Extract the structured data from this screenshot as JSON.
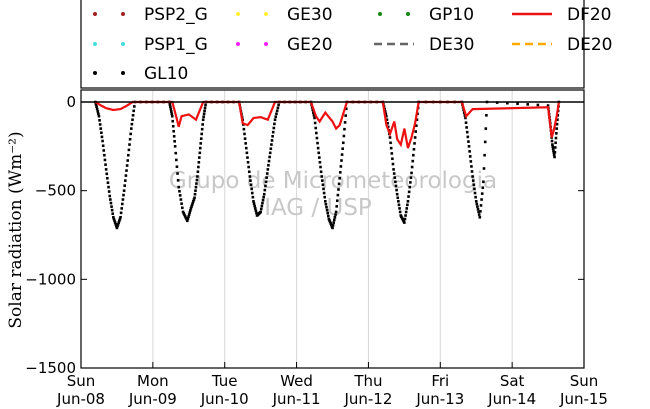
{
  "chart_data": {
    "type": "line",
    "ylabel": "Solar radiation (Wm⁻²)",
    "xlabel": "",
    "ylim": [
      -1500,
      0
    ],
    "y_ticks": [
      0,
      -500,
      -1000,
      -1500
    ],
    "y_tick_labels": [
      "0",
      "−500",
      "−1000",
      "−1500"
    ],
    "xlim": [
      0,
      7
    ],
    "x_ticks": [
      0,
      1,
      2,
      3,
      4,
      5,
      6,
      7
    ],
    "x_tick_labels": [
      {
        "day": "Sun",
        "date": "Jun-08"
      },
      {
        "day": "Mon",
        "date": "Jun-09"
      },
      {
        "day": "Tue",
        "date": "Jun-10"
      },
      {
        "day": "Wed",
        "date": "Jun-11"
      },
      {
        "day": "Thu",
        "date": "Jun-12"
      },
      {
        "day": "Fri",
        "date": "Jun-13"
      },
      {
        "day": "Sat",
        "date": "Jun-14"
      },
      {
        "day": "Sun",
        "date": "Jun-15"
      }
    ],
    "grid": "vertical",
    "legend_position": "top",
    "watermark": [
      "Grupo de Micrometeorologia",
      "IAG / USP"
    ],
    "series": [
      {
        "name": "PSP2_G",
        "style": "dots",
        "color": "#a02020",
        "x": [],
        "y": []
      },
      {
        "name": "GE30",
        "style": "dots",
        "color": "#ffee33",
        "x": [],
        "y": []
      },
      {
        "name": "GP10",
        "style": "dots",
        "color": "#118811",
        "x": [],
        "y": []
      },
      {
        "name": "DF20",
        "style": "line",
        "color": "#ee1111",
        "x": [
          0.2,
          0.28,
          0.35,
          0.45,
          0.55,
          0.62,
          0.72,
          1.27,
          1.33,
          1.36,
          1.4,
          1.5,
          1.6,
          1.7,
          2.2,
          2.25,
          2.32,
          2.4,
          2.5,
          2.6,
          2.7,
          3.2,
          3.27,
          3.32,
          3.4,
          3.5,
          3.55,
          3.6,
          3.7,
          4.2,
          4.25,
          4.3,
          4.36,
          4.4,
          4.45,
          4.5,
          4.55,
          4.6,
          4.65,
          4.7,
          5.3,
          5.36,
          5.45,
          6.5,
          6.55,
          6.58,
          6.62,
          6.65
        ],
        "y": [
          0,
          -20,
          -35,
          -45,
          -40,
          -25,
          0,
          0,
          -90,
          -140,
          -80,
          -70,
          -100,
          0,
          0,
          -120,
          -130,
          -90,
          -85,
          -100,
          0,
          0,
          -80,
          -110,
          -60,
          -110,
          -150,
          -130,
          0,
          0,
          -130,
          -180,
          -110,
          -210,
          -240,
          -150,
          -260,
          -200,
          -120,
          0,
          0,
          -80,
          -40,
          -30,
          -200,
          -160,
          -80,
          0
        ]
      },
      {
        "name": "PSP1_G",
        "style": "dots",
        "color": "#44dddd",
        "x": [],
        "y": []
      },
      {
        "name": "GE20",
        "style": "dots",
        "color": "#ee22ee",
        "x": [],
        "y": []
      },
      {
        "name": "DE30",
        "style": "dashed",
        "color": "#666666",
        "x": [],
        "y": []
      },
      {
        "name": "DE20",
        "style": "dashed",
        "color": "#ffaa00",
        "x": [],
        "y": []
      },
      {
        "name": "GL10",
        "style": "dots",
        "color": "#000000",
        "x": [
          0.2,
          0.25,
          0.3,
          0.35,
          0.4,
          0.45,
          0.5,
          0.55,
          0.6,
          0.65,
          0.7,
          0.75,
          1.23,
          1.27,
          1.31,
          1.36,
          1.42,
          1.48,
          1.53,
          1.58,
          1.62,
          1.66,
          1.7,
          1.74,
          2.2,
          2.25,
          2.3,
          2.35,
          2.4,
          2.45,
          2.5,
          2.55,
          2.6,
          2.65,
          2.7,
          2.76,
          3.2,
          3.25,
          3.3,
          3.35,
          3.4,
          3.45,
          3.5,
          3.55,
          3.6,
          3.65,
          3.7,
          4.2,
          4.25,
          4.3,
          4.35,
          4.4,
          4.45,
          4.5,
          4.55,
          4.6,
          4.65,
          4.7,
          5.3,
          5.35,
          5.4,
          5.45,
          5.5,
          5.55,
          5.6,
          5.65,
          6.5,
          6.53,
          6.56,
          6.59,
          6.62,
          6.65
        ],
        "y": [
          0,
          -80,
          -220,
          -380,
          -530,
          -650,
          -710,
          -650,
          -500,
          -330,
          -150,
          0,
          0,
          -80,
          -250,
          -480,
          -620,
          -670,
          -600,
          -540,
          -420,
          -260,
          -100,
          0,
          0,
          -100,
          -260,
          -420,
          -560,
          -640,
          -620,
          -520,
          -380,
          -240,
          -100,
          0,
          0,
          -90,
          -260,
          -420,
          -560,
          -660,
          -710,
          -620,
          -430,
          -230,
          0,
          0,
          -80,
          -200,
          -380,
          -520,
          -640,
          -680,
          -560,
          -400,
          -200,
          0,
          0,
          -90,
          -250,
          -420,
          -560,
          -650,
          -450,
          0,
          -20,
          -120,
          -240,
          -310,
          -150,
          0
        ]
      }
    ]
  }
}
